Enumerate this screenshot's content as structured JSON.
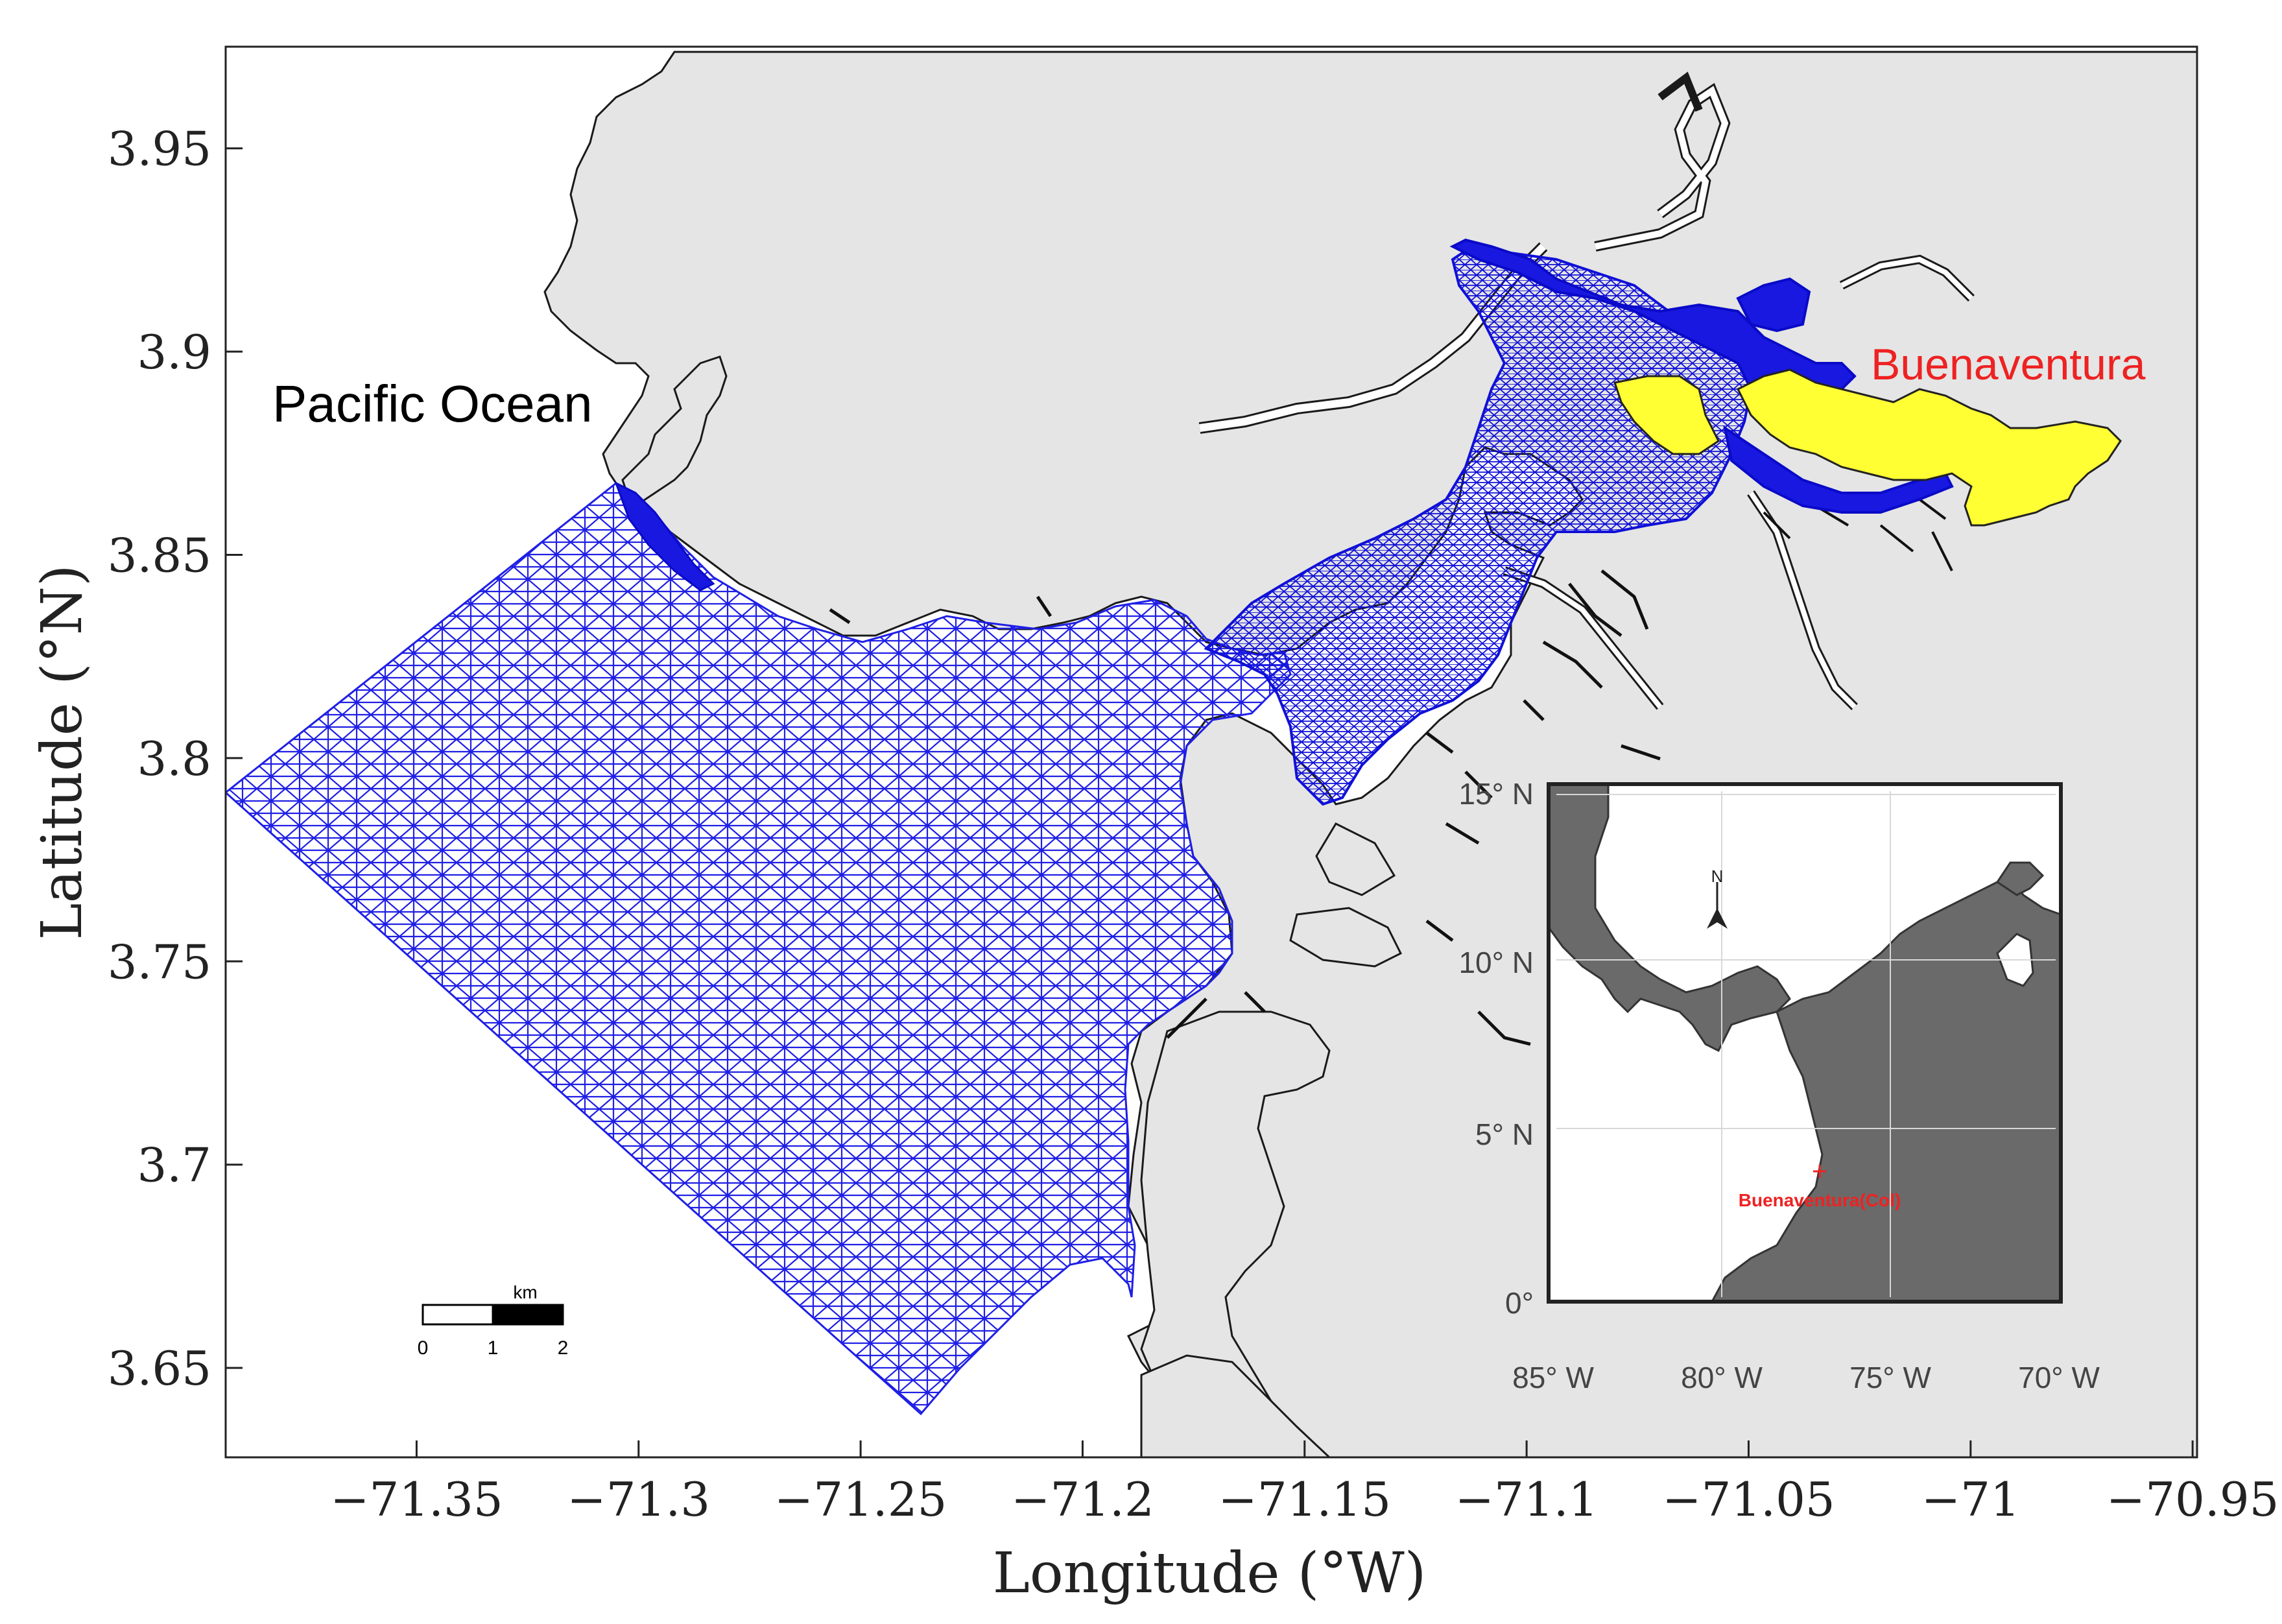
{
  "figure": {
    "xlabel": "Longitude (°W)",
    "ylabel": "Latitude (°N)",
    "x_ticks": [
      "−71.35",
      "−71.3",
      "−71.25",
      "−71.2",
      "−71.15",
      "−71.1",
      "−71.05",
      "−71",
      "−70.95"
    ],
    "y_ticks": [
      "3.95",
      "3.9",
      "3.85",
      "3.8",
      "3.75",
      "3.7",
      "3.65"
    ],
    "xlim": [
      -71.393,
      -70.949
    ],
    "ylim": [
      3.628,
      3.975
    ]
  },
  "labels": {
    "ocean": "Pacific Ocean",
    "city": "Buenaventura"
  },
  "scale_bar": {
    "unit": "km",
    "ticks": [
      "0",
      "1",
      "2"
    ]
  },
  "inset": {
    "x_ticks": [
      "85° W",
      "80° W",
      "75° W",
      "70° W"
    ],
    "y_ticks": [
      "15° N",
      "10° N",
      "5° N",
      "0°"
    ],
    "location_label": "Buenaventura(Col)",
    "north_label": "N"
  },
  "colors": {
    "land": "#e5e5e5",
    "mesh": "#1f1fe6",
    "mesh_dense": "#1010d8",
    "city_area": "#ffff33",
    "label_red": "#ee2222",
    "inset_land": "#6a6a6a"
  }
}
